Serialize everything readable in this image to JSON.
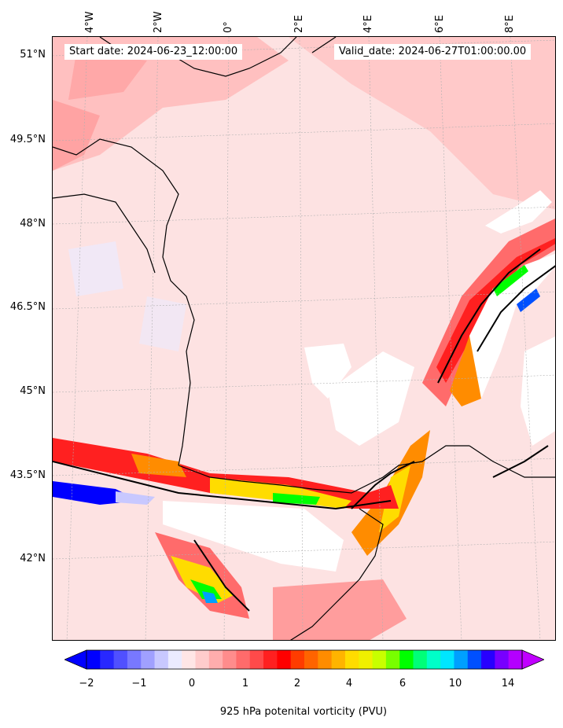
{
  "map": {
    "start_date": "Start date: 2024-06-23_12:00:00",
    "valid_date": "Valid_date: 2024-06-27T01:00:00.00",
    "lat_labels": [
      "51°N",
      "49.5°N",
      "48°N",
      "46.5°N",
      "45°N",
      "43.5°N",
      "42°N"
    ],
    "lon_labels": [
      "4°W",
      "2°W",
      "0°",
      "2°E",
      "4°E",
      "6°E",
      "8°E"
    ]
  },
  "colorbar": {
    "label": "925 hPa potenital vorticity (PVU)",
    "ticks": [
      "−2",
      "−1",
      "0",
      "1",
      "2",
      "4",
      "6",
      "10",
      "14"
    ],
    "colors": [
      "#0000ff",
      "#2828ff",
      "#5050ff",
      "#7878ff",
      "#a0a0ff",
      "#c8c8ff",
      "#ebebff",
      "#ffe6e6",
      "#ffcccc",
      "#ffadad",
      "#ff8c8c",
      "#ff6b6b",
      "#ff4a4a",
      "#ff2020",
      "#ff0000",
      "#ff3c00",
      "#ff6400",
      "#ff8c00",
      "#ffb400",
      "#ffdc00",
      "#f0f000",
      "#c8ff00",
      "#78ff00",
      "#00ff00",
      "#00ff78",
      "#00ffc8",
      "#00e6ff",
      "#00a0ff",
      "#0050ff",
      "#2800ff",
      "#7800ff",
      "#b400ff"
    ],
    "under_color": "#0000ff",
    "over_color": "#c000ff"
  }
}
